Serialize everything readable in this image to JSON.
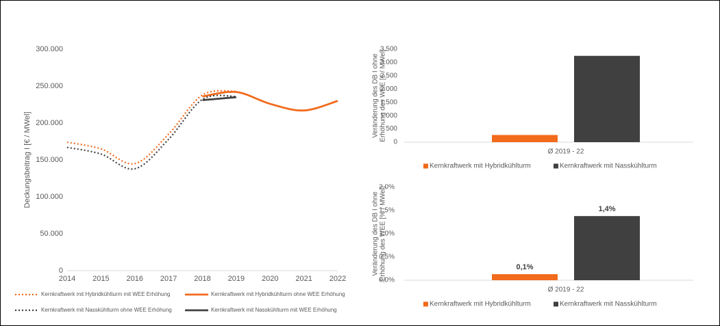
{
  "chart_data": [
    {
      "type": "line",
      "y_label": "Deckungsbeitrag  I [€ / MWel]",
      "x": [
        2014,
        2015,
        2016,
        2017,
        2018,
        2019,
        2020,
        2021,
        2022
      ],
      "xlim": [
        2014,
        2022
      ],
      "xticks": [
        2014,
        2015,
        2016,
        2017,
        2018,
        2019,
        2020,
        2021,
        2022
      ],
      "ylim": [
        0,
        300000
      ],
      "yticks": [
        0,
        {
          "value": 50000,
          "label": "50.000"
        },
        {
          "value": 100000,
          "label": "100.000"
        },
        {
          "value": 150000,
          "label": "150.000"
        },
        {
          "value": 200000,
          "label": "200.000"
        },
        {
          "value": 250000,
          "label": "250.000"
        },
        {
          "value": 300000,
          "label": "300.000"
        }
      ],
      "series": [
        {
          "name": "Kernkraftwerk mit Hybridkühlturm mit WEE Erhöhung",
          "color": "#f26a1b",
          "dashed": true,
          "values": [
            174000,
            165000,
            145000,
            185000,
            238000,
            243000,
            null,
            null,
            null
          ]
        },
        {
          "name": "Kernkraftwerk mit Hybridkühlturm ohne WEE Erhöhung",
          "color": "#f26a1b",
          "dashed": false,
          "values": [
            null,
            null,
            null,
            null,
            236000,
            242000,
            226000,
            217000,
            230000
          ]
        },
        {
          "name": "Kernkraftwerk mit Nasskühlturm ohne WEE Erhöhung",
          "color": "#404040",
          "dashed": true,
          "values": [
            167000,
            158000,
            138000,
            178000,
            232000,
            236000,
            null,
            null,
            null
          ]
        },
        {
          "name": "Kernkraftwerk mit Nasskühlturm mit WEE Erhöhung",
          "color": "#404040",
          "dashed": false,
          "values": [
            null,
            null,
            null,
            null,
            231000,
            235000,
            null,
            null,
            null
          ]
        }
      ]
    },
    {
      "type": "bar",
      "y_label": [
        "Veränderung des DB I ohne",
        "Erhöhung des WEE [€ / MWel]"
      ],
      "categories": [
        "Ø 2019 - 22"
      ],
      "ylim": [
        0,
        3500
      ],
      "yticks": [
        0,
        500,
        {
          "value": 1000,
          "label": "1.000"
        },
        {
          "value": 1500,
          "label": "1.500"
        },
        {
          "value": 2000,
          "label": "2.000"
        },
        {
          "value": 2500,
          "label": "2.500"
        },
        {
          "value": 3000,
          "label": "3.000"
        },
        {
          "value": 3500,
          "label": "3.500"
        }
      ],
      "series": [
        {
          "name": "Kernkraftwerk mit Hybridkühlturm",
          "color": "#f26a1b",
          "values": [
            270
          ]
        },
        {
          "name": "Kernkraftwerk mit Nasskühlturm",
          "color": "#404040",
          "values": [
            3250
          ]
        }
      ]
    },
    {
      "type": "bar",
      "y_label": [
        "Veränderung des DB I ohne",
        "Erhöhung des WEE [% / MWel]"
      ],
      "categories": [
        "Ø 2019 - 22"
      ],
      "ylim": [
        0,
        2.0
      ],
      "yticks": [
        {
          "value": 0,
          "label": "0,0%"
        },
        {
          "value": 0.5,
          "label": "0,5%"
        },
        {
          "value": 1.0,
          "label": "1,0%"
        },
        {
          "value": 1.5,
          "label": "1,5%"
        },
        {
          "value": 2.0,
          "label": "2,0%"
        }
      ],
      "series": [
        {
          "name": "Kernkraftwerk mit Hybridkühlturm",
          "color": "#f26a1b",
          "values": [
            0.13
          ],
          "value_labels": [
            "0,1%"
          ]
        },
        {
          "name": "Kernkraftwerk mit Nasskühlturm",
          "color": "#404040",
          "values": [
            1.38
          ],
          "value_labels": [
            "1,4%"
          ]
        }
      ]
    }
  ]
}
